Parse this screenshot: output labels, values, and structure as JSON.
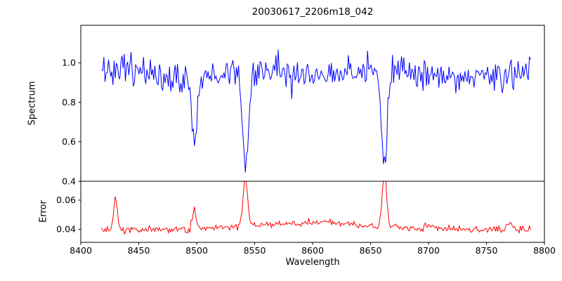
{
  "chart_data": {
    "type": "line",
    "title": "20030617_2206m18_042",
    "xlabel": "Wavelength",
    "xlim": [
      8400,
      8800
    ],
    "xticks": [
      {
        "v": 8400,
        "label": "8400"
      },
      {
        "v": 8450,
        "label": "8450"
      },
      {
        "v": 8500,
        "label": "8500"
      },
      {
        "v": 8550,
        "label": "8550"
      },
      {
        "v": 8600,
        "label": "8600"
      },
      {
        "v": 8650,
        "label": "8650"
      },
      {
        "v": 8700,
        "label": "8700"
      },
      {
        "v": 8750,
        "label": "8750"
      },
      {
        "v": 8800,
        "label": "8800"
      }
    ],
    "x_start": 8418,
    "x_end": 8788,
    "n_points": 380,
    "seed": 7,
    "grid": false,
    "legend": "none",
    "subplots": [
      {
        "name": "spectrum",
        "ylabel": "Spectrum",
        "color": "#0000ff",
        "ylim": [
          0.4,
          1.19
        ],
        "yticks": [
          {
            "v": 0.4,
            "label": "0.4"
          },
          {
            "v": 0.6,
            "label": "0.6"
          },
          {
            "v": 0.8,
            "label": "0.8"
          },
          {
            "v": 1.0,
            "label": "1.0"
          }
        ],
        "continuum": 0.95,
        "noise_sigma": 0.04,
        "wiggles": [
          {
            "period": 19,
            "amp": 0.018,
            "phase": 0
          },
          {
            "period": 43,
            "amp": 0.013,
            "phase": 2
          }
        ],
        "absorption_lines": [
          {
            "center": 8498,
            "depth": 0.3,
            "sigma": 2.2
          },
          {
            "center": 8542,
            "depth": 0.52,
            "sigma": 2.6
          },
          {
            "center": 8662,
            "depth": 0.5,
            "sigma": 2.5
          }
        ]
      },
      {
        "name": "error",
        "ylabel": "Error",
        "color": "#ff0000",
        "ylim": [
          0.031,
          0.073
        ],
        "yticks": [
          {
            "v": 0.04,
            "label": "0.04"
          },
          {
            "v": 0.06,
            "label": "0.06"
          }
        ],
        "baseline": 0.0395,
        "noise_sigma": 0.0012,
        "humps": [
          {
            "center": 8600,
            "amp": 0.005,
            "sigma": 55
          }
        ],
        "spikes": [
          {
            "center": 8430,
            "amp": 0.021,
            "sigma": 1.6
          },
          {
            "center": 8498,
            "amp": 0.013,
            "sigma": 1.6
          },
          {
            "center": 8542,
            "amp": 0.034,
            "sigma": 1.9
          },
          {
            "center": 8662,
            "amp": 0.037,
            "sigma": 1.9
          },
          {
            "center": 8700,
            "amp": 0.003,
            "sigma": 2.0
          },
          {
            "center": 8770,
            "amp": 0.005,
            "sigma": 2.5
          }
        ]
      }
    ]
  }
}
